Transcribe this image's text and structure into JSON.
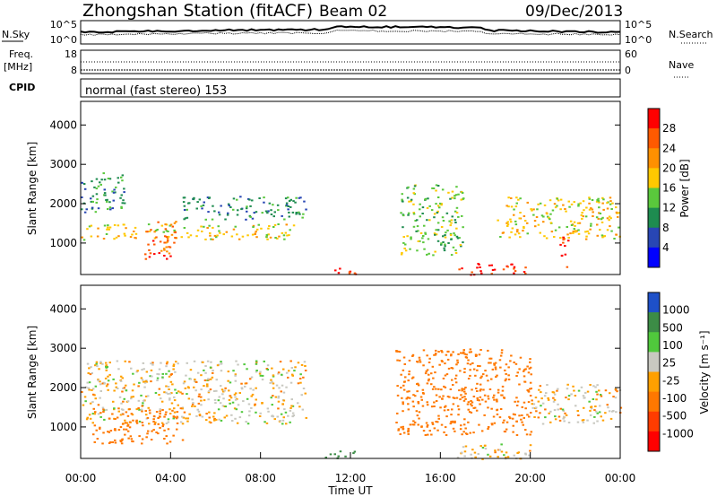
{
  "header": {
    "station": "Zhongshan Station (fitACF)",
    "beam": "Beam 02",
    "date": "09/Dec/2013"
  },
  "top_panels": {
    "nsky_label": "N.Sky",
    "nsearch_label": "N.Search",
    "nsky_ticks": [
      "10^5",
      "10^0"
    ],
    "nsearch_ticks": [
      "10^5",
      "10^0"
    ],
    "freq_label_1": "Freq.",
    "freq_label_2": "[MHz]",
    "freq_ticks": [
      "18",
      "8"
    ],
    "nave_label": "Nave",
    "nave_ticks": [
      "60",
      "0"
    ],
    "cpid_label": "CPID",
    "cpid_value": "normal (fast stereo) 153"
  },
  "chart_data": [
    {
      "type": "heatmap",
      "ylabel": "Slant Range [km]",
      "ylim": [
        200,
        4600
      ],
      "yticks": [
        "4000",
        "3000",
        "2000",
        "1000"
      ],
      "colorbar": {
        "label": "Power [dB]",
        "ticks": [
          "28",
          "24",
          "20",
          "16",
          "12",
          "8",
          "4"
        ],
        "colors": [
          "#ff0000",
          "#ff5a00",
          "#ff9000",
          "#ffc800",
          "#5ac83c",
          "#1e8c50",
          "#2846b4",
          "#0000ff"
        ]
      },
      "regions": [
        {
          "t0": 0.0,
          "t1": 2.0,
          "r0": 1800,
          "r1": 2800,
          "power": 8
        },
        {
          "t0": 0.0,
          "t1": 9.5,
          "r0": 1100,
          "r1": 1500,
          "power": 16
        },
        {
          "t0": 2.8,
          "t1": 4.2,
          "r0": 600,
          "r1": 1600,
          "power": 24
        },
        {
          "t0": 4.5,
          "t1": 10.0,
          "r0": 1600,
          "r1": 2200,
          "power": 8
        },
        {
          "t0": 11.0,
          "t1": 12.3,
          "r0": 200,
          "r1": 400,
          "power": 28
        },
        {
          "t0": 14.2,
          "t1": 17.0,
          "r0": 700,
          "r1": 2500,
          "power": 12
        },
        {
          "t0": 16.8,
          "t1": 19.8,
          "r0": 200,
          "r1": 500,
          "power": 28
        },
        {
          "t0": 18.5,
          "t1": 24.0,
          "r0": 1100,
          "r1": 2200,
          "power": 16
        },
        {
          "t0": 21.3,
          "t1": 21.7,
          "r0": 400,
          "r1": 1200,
          "power": 28
        }
      ]
    },
    {
      "type": "heatmap",
      "ylabel": "Slant Range [km]",
      "ylim": [
        200,
        4600
      ],
      "yticks": [
        "4000",
        "3000",
        "2000",
        "1000"
      ],
      "xlabel": "Time UT",
      "xticks": [
        "00:00",
        "04:00",
        "08:00",
        "12:00",
        "16:00",
        "20:00",
        "00:00"
      ],
      "colorbar": {
        "label": "Velocity [m s⁻¹]",
        "ticks": [
          "1000",
          "500",
          "100",
          "25",
          "-25",
          "-100",
          "-500",
          "-1000"
        ],
        "colors": [
          "#1e50c8",
          "#3c8c46",
          "#50c83c",
          "#c8c8c0",
          "#ffa000",
          "#ff7800",
          "#ff3c00",
          "#ff0000"
        ]
      },
      "regions": [
        {
          "t0": 0.0,
          "t1": 10.0,
          "r0": 1500,
          "r1": 2700,
          "velocity": 0
        },
        {
          "t0": 0.0,
          "t1": 10.0,
          "r0": 1100,
          "r1": 1500,
          "velocity": 0
        },
        {
          "t0": 0.5,
          "t1": 4.5,
          "r0": 600,
          "r1": 1500,
          "velocity": -200
        },
        {
          "t0": 10.8,
          "t1": 12.2,
          "r0": 200,
          "r1": 400,
          "velocity": 400
        },
        {
          "t0": 14.0,
          "t1": 20.0,
          "r0": 800,
          "r1": 3000,
          "velocity": -200
        },
        {
          "t0": 16.5,
          "t1": 20.0,
          "r0": 200,
          "r1": 600,
          "velocity": 0
        },
        {
          "t0": 20.0,
          "t1": 24.0,
          "r0": 1100,
          "r1": 2100,
          "velocity": 0
        }
      ]
    }
  ]
}
